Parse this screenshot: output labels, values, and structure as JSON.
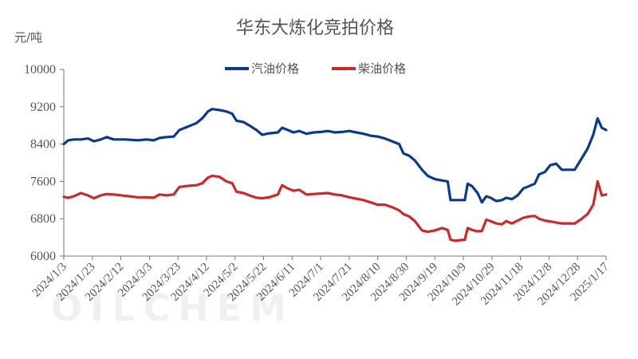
{
  "chart_data": {
    "type": "line",
    "title": "华东大炼化竞拍价格",
    "unit_label": "元/吨",
    "ylim": [
      6000,
      10000
    ],
    "yticks": [
      6000,
      6800,
      7600,
      8400,
      9200,
      10000
    ],
    "x_tick_labels": [
      "2024/1/3",
      "2024/1/23",
      "2024/2/12",
      "2024/3/3",
      "2024/3/23",
      "2024/4/12",
      "2024/5/2",
      "2024/5/22",
      "2024/6/11",
      "2024/7/1",
      "2024/7/21",
      "2024/8/10",
      "2024/8/30",
      "2024/9/19",
      "2024/10/9",
      "2024/10/29",
      "2024/11/18",
      "2024/12/8",
      "2024/12/28",
      "2025/1/17"
    ],
    "x_range": [
      "2024-01-03",
      "2025-01-17"
    ],
    "legend_position": "top-center",
    "grid": false,
    "watermark": "OILCHEM",
    "series": [
      {
        "name": "汽油价格",
        "color": "#0b3a8c",
        "points": [
          [
            "2024-01-03",
            8400
          ],
          [
            "2024-01-06",
            8480
          ],
          [
            "2024-01-10",
            8500
          ],
          [
            "2024-01-15",
            8500
          ],
          [
            "2024-01-20",
            8520
          ],
          [
            "2024-01-24",
            8460
          ],
          [
            "2024-01-29",
            8500
          ],
          [
            "2024-02-02",
            8550
          ],
          [
            "2024-02-07",
            8500
          ],
          [
            "2024-02-15",
            8500
          ],
          [
            "2024-02-24",
            8480
          ],
          [
            "2024-03-01",
            8500
          ],
          [
            "2024-03-06",
            8480
          ],
          [
            "2024-03-10",
            8530
          ],
          [
            "2024-03-15",
            8550
          ],
          [
            "2024-03-20",
            8560
          ],
          [
            "2024-03-24",
            8700
          ],
          [
            "2024-03-28",
            8750
          ],
          [
            "2024-04-01",
            8800
          ],
          [
            "2024-04-05",
            8850
          ],
          [
            "2024-04-09",
            8950
          ],
          [
            "2024-04-13",
            9100
          ],
          [
            "2024-04-16",
            9150
          ],
          [
            "2024-04-21",
            9130
          ],
          [
            "2024-04-26",
            9100
          ],
          [
            "2024-04-30",
            9050
          ],
          [
            "2024-05-03",
            8900
          ],
          [
            "2024-05-08",
            8870
          ],
          [
            "2024-05-12",
            8800
          ],
          [
            "2024-05-17",
            8700
          ],
          [
            "2024-05-21",
            8600
          ],
          [
            "2024-05-26",
            8630
          ],
          [
            "2024-06-01",
            8650
          ],
          [
            "2024-06-04",
            8750
          ],
          [
            "2024-06-08",
            8700
          ],
          [
            "2024-06-12",
            8650
          ],
          [
            "2024-06-16",
            8680
          ],
          [
            "2024-06-21",
            8620
          ],
          [
            "2024-06-26",
            8650
          ],
          [
            "2024-07-01",
            8660
          ],
          [
            "2024-07-06",
            8680
          ],
          [
            "2024-07-11",
            8650
          ],
          [
            "2024-07-16",
            8660
          ],
          [
            "2024-07-21",
            8680
          ],
          [
            "2024-07-26",
            8650
          ],
          [
            "2024-07-31",
            8620
          ],
          [
            "2024-08-05",
            8580
          ],
          [
            "2024-08-10",
            8560
          ],
          [
            "2024-08-15",
            8520
          ],
          [
            "2024-08-20",
            8460
          ],
          [
            "2024-08-25",
            8400
          ],
          [
            "2024-08-28",
            8200
          ],
          [
            "2024-09-01",
            8150
          ],
          [
            "2024-09-05",
            8050
          ],
          [
            "2024-09-10",
            7850
          ],
          [
            "2024-09-14",
            7720
          ],
          [
            "2024-09-19",
            7650
          ],
          [
            "2024-09-24",
            7620
          ],
          [
            "2024-09-28",
            7600
          ],
          [
            "2024-09-30",
            7200
          ],
          [
            "2024-10-03",
            7200
          ],
          [
            "2024-10-10",
            7200
          ],
          [
            "2024-10-12",
            7550
          ],
          [
            "2024-10-15",
            7500
          ],
          [
            "2024-10-19",
            7350
          ],
          [
            "2024-10-22",
            7150
          ],
          [
            "2024-10-25",
            7280
          ],
          [
            "2024-10-28",
            7250
          ],
          [
            "2024-11-01",
            7180
          ],
          [
            "2024-11-05",
            7200
          ],
          [
            "2024-11-08",
            7250
          ],
          [
            "2024-11-12",
            7220
          ],
          [
            "2024-11-16",
            7300
          ],
          [
            "2024-11-20",
            7450
          ],
          [
            "2024-11-24",
            7500
          ],
          [
            "2024-11-28",
            7550
          ],
          [
            "2024-12-01",
            7750
          ],
          [
            "2024-12-05",
            7800
          ],
          [
            "2024-12-09",
            7950
          ],
          [
            "2024-12-13",
            7980
          ],
          [
            "2024-12-17",
            7850
          ],
          [
            "2024-12-21",
            7850
          ],
          [
            "2024-12-26",
            7850
          ],
          [
            "2024-12-30",
            8050
          ],
          [
            "2025-01-04",
            8300
          ],
          [
            "2025-01-08",
            8600
          ],
          [
            "2025-01-11",
            8950
          ],
          [
            "2025-01-14",
            8750
          ],
          [
            "2025-01-17",
            8700
          ]
        ]
      },
      {
        "name": "柴油价格",
        "color": "#cc2a2a",
        "points": [
          [
            "2024-01-03",
            7270
          ],
          [
            "2024-01-06",
            7250
          ],
          [
            "2024-01-10",
            7280
          ],
          [
            "2024-01-15",
            7350
          ],
          [
            "2024-01-20",
            7300
          ],
          [
            "2024-01-24",
            7240
          ],
          [
            "2024-01-29",
            7300
          ],
          [
            "2024-02-02",
            7330
          ],
          [
            "2024-02-07",
            7320
          ],
          [
            "2024-02-15",
            7290
          ],
          [
            "2024-02-24",
            7260
          ],
          [
            "2024-03-01",
            7260
          ],
          [
            "2024-03-06",
            7250
          ],
          [
            "2024-03-10",
            7320
          ],
          [
            "2024-03-15",
            7300
          ],
          [
            "2024-03-20",
            7320
          ],
          [
            "2024-03-24",
            7480
          ],
          [
            "2024-03-28",
            7500
          ],
          [
            "2024-04-01",
            7510
          ],
          [
            "2024-04-05",
            7520
          ],
          [
            "2024-04-09",
            7560
          ],
          [
            "2024-04-13",
            7680
          ],
          [
            "2024-04-16",
            7720
          ],
          [
            "2024-04-21",
            7700
          ],
          [
            "2024-04-26",
            7600
          ],
          [
            "2024-04-30",
            7560
          ],
          [
            "2024-05-03",
            7380
          ],
          [
            "2024-05-08",
            7350
          ],
          [
            "2024-05-12",
            7300
          ],
          [
            "2024-05-17",
            7250
          ],
          [
            "2024-05-21",
            7240
          ],
          [
            "2024-05-26",
            7260
          ],
          [
            "2024-06-01",
            7320
          ],
          [
            "2024-06-04",
            7520
          ],
          [
            "2024-06-08",
            7450
          ],
          [
            "2024-06-12",
            7400
          ],
          [
            "2024-06-16",
            7420
          ],
          [
            "2024-06-21",
            7320
          ],
          [
            "2024-06-26",
            7330
          ],
          [
            "2024-07-01",
            7340
          ],
          [
            "2024-07-06",
            7350
          ],
          [
            "2024-07-11",
            7320
          ],
          [
            "2024-07-16",
            7300
          ],
          [
            "2024-07-21",
            7260
          ],
          [
            "2024-07-26",
            7230
          ],
          [
            "2024-07-31",
            7200
          ],
          [
            "2024-08-05",
            7150
          ],
          [
            "2024-08-10",
            7100
          ],
          [
            "2024-08-15",
            7100
          ],
          [
            "2024-08-20",
            7050
          ],
          [
            "2024-08-25",
            6980
          ],
          [
            "2024-08-28",
            6900
          ],
          [
            "2024-09-01",
            6850
          ],
          [
            "2024-09-05",
            6750
          ],
          [
            "2024-09-10",
            6550
          ],
          [
            "2024-09-14",
            6520
          ],
          [
            "2024-09-19",
            6550
          ],
          [
            "2024-09-24",
            6600
          ],
          [
            "2024-09-28",
            6560
          ],
          [
            "2024-09-30",
            6350
          ],
          [
            "2024-10-03",
            6330
          ],
          [
            "2024-10-10",
            6350
          ],
          [
            "2024-10-12",
            6600
          ],
          [
            "2024-10-15",
            6560
          ],
          [
            "2024-10-19",
            6530
          ],
          [
            "2024-10-22",
            6540
          ],
          [
            "2024-10-25",
            6780
          ],
          [
            "2024-10-28",
            6750
          ],
          [
            "2024-11-01",
            6700
          ],
          [
            "2024-11-05",
            6680
          ],
          [
            "2024-11-08",
            6750
          ],
          [
            "2024-11-12",
            6700
          ],
          [
            "2024-11-16",
            6760
          ],
          [
            "2024-11-20",
            6820
          ],
          [
            "2024-11-24",
            6850
          ],
          [
            "2024-11-28",
            6860
          ],
          [
            "2024-12-01",
            6800
          ],
          [
            "2024-12-05",
            6760
          ],
          [
            "2024-12-09",
            6740
          ],
          [
            "2024-12-13",
            6720
          ],
          [
            "2024-12-17",
            6700
          ],
          [
            "2024-12-21",
            6700
          ],
          [
            "2024-12-26",
            6700
          ],
          [
            "2024-12-30",
            6780
          ],
          [
            "2025-01-04",
            6900
          ],
          [
            "2025-01-08",
            7100
          ],
          [
            "2025-01-11",
            7600
          ],
          [
            "2025-01-14",
            7300
          ],
          [
            "2025-01-17",
            7320
          ]
        ]
      }
    ]
  }
}
